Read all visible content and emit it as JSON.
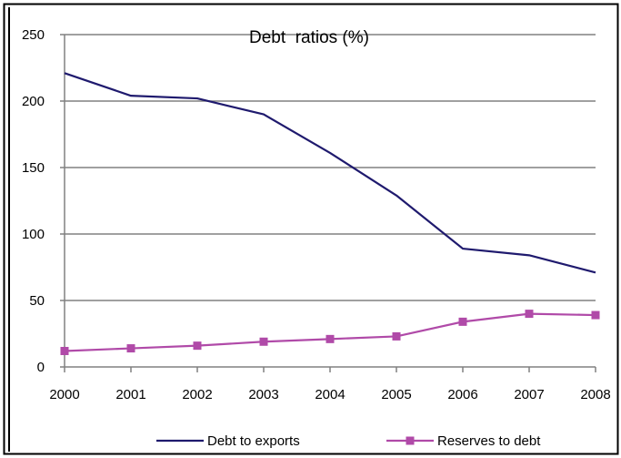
{
  "chart_data": {
    "type": "line",
    "title": "Debt  ratios (%)",
    "xlabel": "",
    "ylabel": "",
    "categories": [
      "2000",
      "2001",
      "2002",
      "2003",
      "2004",
      "2005",
      "2006",
      "2007",
      "2008"
    ],
    "ylim": [
      0,
      250
    ],
    "yticks": [
      "0",
      "50",
      "100",
      "150",
      "200",
      "250"
    ],
    "grid": true,
    "legend_position": "bottom",
    "series": [
      {
        "name": "Debt to exports",
        "color": "#1f1a6e",
        "marker": "none",
        "values": [
          221,
          204,
          202,
          190,
          161,
          129,
          89,
          84,
          71
        ]
      },
      {
        "name": "Reserves to debt",
        "color": "#b04aa8",
        "marker": "square",
        "values": [
          12,
          14,
          16,
          19,
          21,
          23,
          34,
          40,
          39
        ]
      }
    ]
  }
}
